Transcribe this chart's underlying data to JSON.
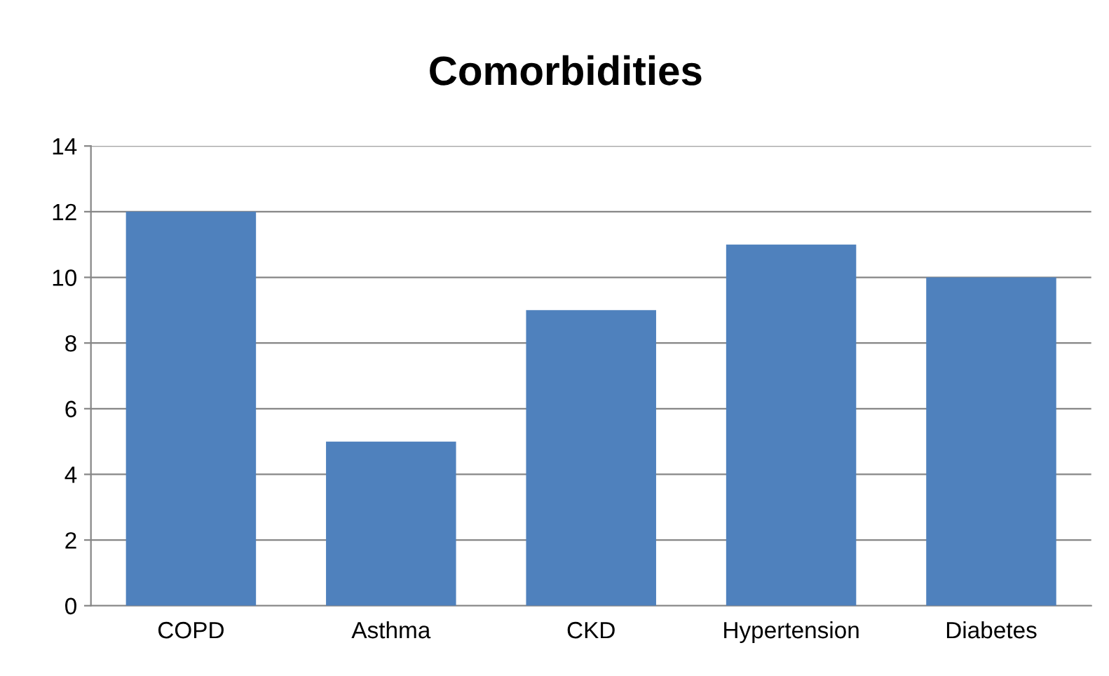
{
  "chart_data": {
    "type": "bar",
    "title": "Comorbidities",
    "categories": [
      "COPD",
      "Asthma",
      "CKD",
      "Hypertension",
      "Diabetes"
    ],
    "values": [
      12,
      5,
      9,
      11,
      10
    ],
    "color": "#4f81bd",
    "ylim": [
      0,
      14
    ],
    "yticks": [
      0,
      2,
      4,
      6,
      8,
      10,
      12,
      14
    ],
    "grid": "y",
    "legend": false
  }
}
